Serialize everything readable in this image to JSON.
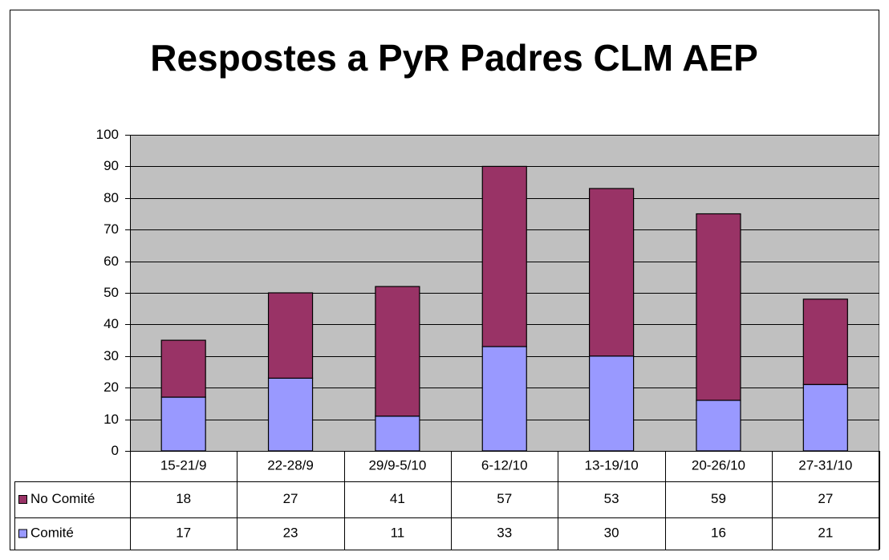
{
  "chart_data": {
    "type": "bar",
    "stacked": true,
    "title": "Respostes a PyR Padres CLM AEP",
    "categories": [
      "15-21/9",
      "22-28/9",
      "29/9-5/10",
      "6-12/10",
      "13-19/10",
      "20-26/10",
      "27-31/10"
    ],
    "series": [
      {
        "name": "Comité",
        "color": "#9999ff",
        "values": [
          17,
          23,
          11,
          33,
          30,
          16,
          21
        ]
      },
      {
        "name": "No Comité",
        "color": "#993366",
        "values": [
          18,
          27,
          41,
          57,
          53,
          59,
          27
        ]
      }
    ],
    "ylim": [
      0,
      100
    ],
    "yticks": [
      0,
      10,
      20,
      30,
      40,
      50,
      60,
      70,
      80,
      90,
      100
    ],
    "grid": true
  }
}
